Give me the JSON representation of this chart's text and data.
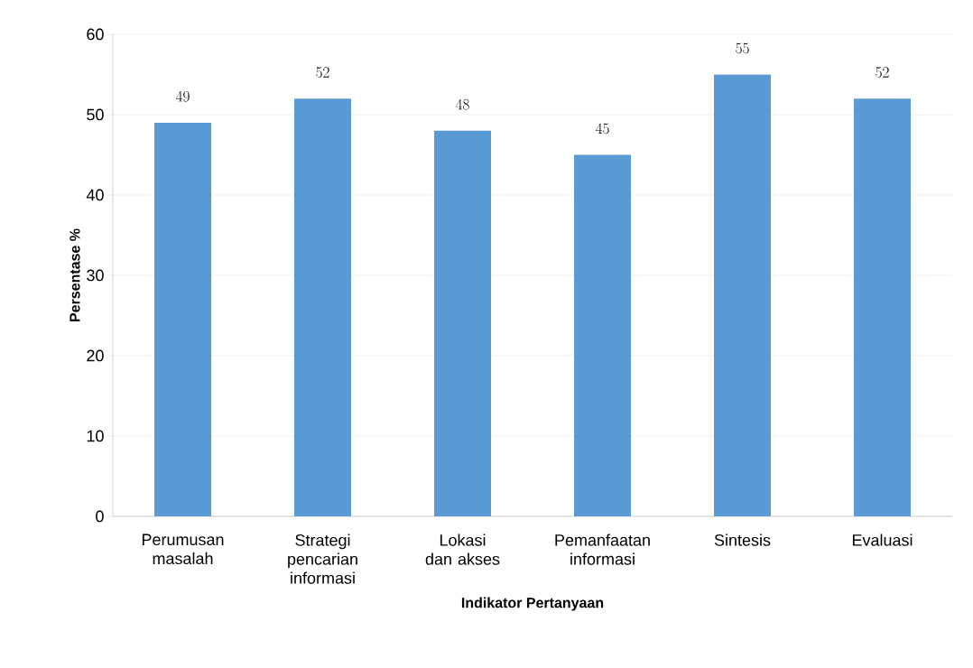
{
  "chart_data": {
    "type": "bar",
    "xlabel": "Indikator Pertanyaan",
    "ylabel": "Persentase %",
    "categories": [
      "Perumusan masalah",
      "Strategi pencarian informasi",
      "Lokasi dan akses",
      "Pemanfaatan informasi",
      "Sintesis",
      "Evaluasi"
    ],
    "values": [
      49,
      52,
      48,
      45,
      55,
      52
    ],
    "color": "#5b9bd5",
    "ylim": [
      0,
      60
    ],
    "yticks": [
      0,
      10,
      20,
      30,
      40,
      50,
      60
    ],
    "grid": "y",
    "data_labels": true
  }
}
